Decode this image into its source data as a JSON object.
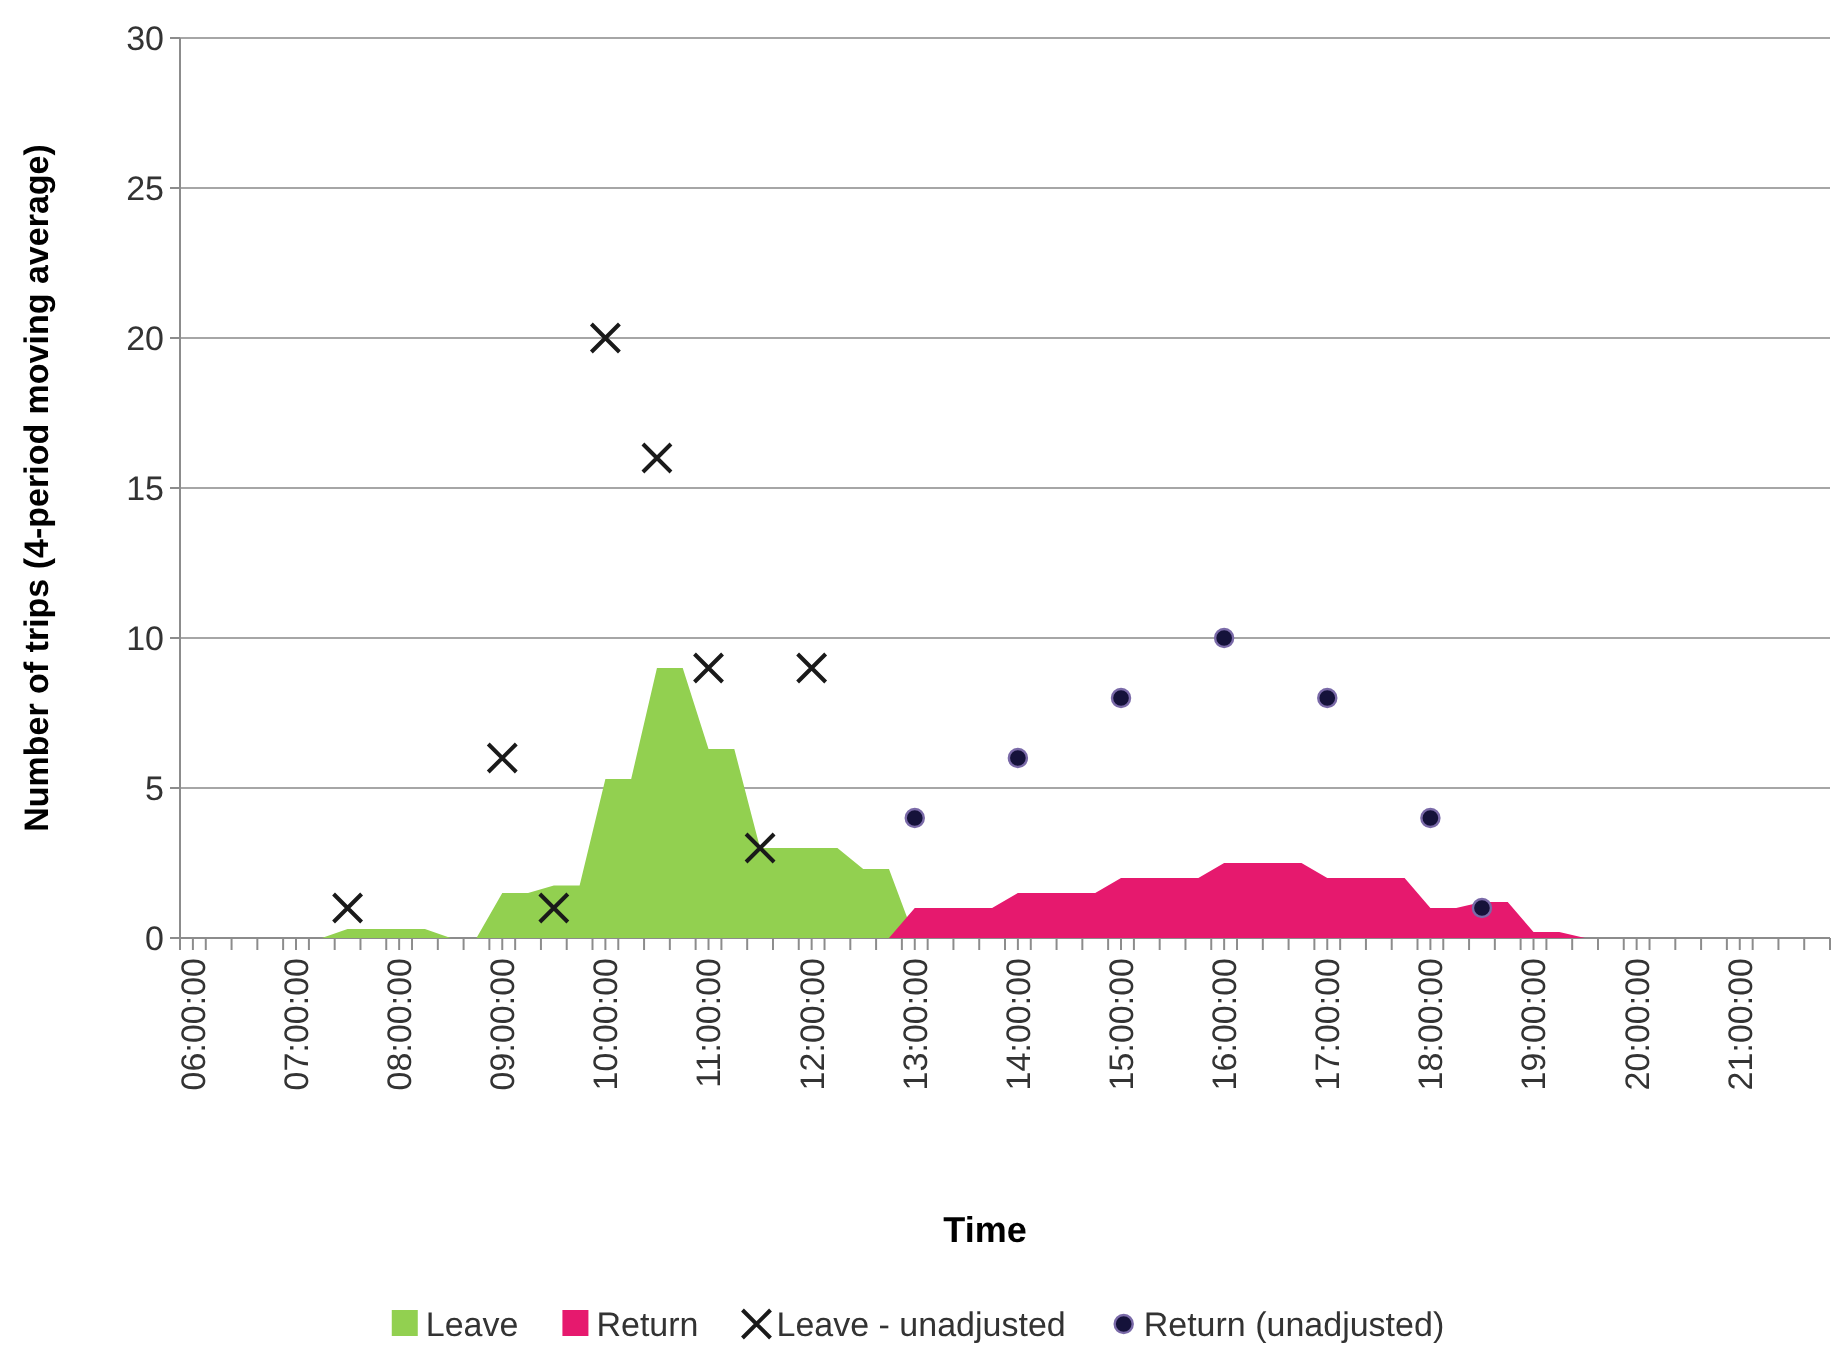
{
  "chart_data": {
    "type": "area",
    "xlabel": "Time",
    "ylabel": "Number of trips (4-period moving average)",
    "x": [
      6,
      6.25,
      6.5,
      6.75,
      7,
      7.25,
      7.5,
      7.75,
      8,
      8.25,
      8.5,
      8.75,
      9,
      9.25,
      9.5,
      9.75,
      10,
      10.25,
      10.5,
      10.75,
      11,
      11.25,
      11.5,
      11.75,
      12,
      12.25,
      12.5,
      12.75,
      13,
      13.25,
      13.5,
      13.75,
      14,
      14.25,
      14.5,
      14.75,
      15,
      15.25,
      15.5,
      15.75,
      16,
      16.25,
      16.5,
      16.75,
      17,
      17.25,
      17.5,
      17.75,
      18,
      18.25,
      18.5,
      18.75,
      19,
      19.25,
      19.5,
      19.75,
      20,
      20.25,
      20.5,
      20.75,
      21,
      21.25,
      21.5,
      21.75
    ],
    "series": [
      {
        "name": "Leave",
        "color": "#92d050",
        "values": [
          0,
          0,
          0,
          0,
          0,
          0,
          0.3,
          0.3,
          0.3,
          0.3,
          0,
          0,
          1.5,
          1.5,
          1.75,
          1.75,
          5.3,
          5.3,
          9,
          9,
          6.3,
          6.3,
          3,
          3,
          3,
          3,
          2.3,
          2.3,
          0,
          0,
          0,
          0,
          0,
          0,
          0,
          0,
          0,
          0,
          0,
          0,
          0,
          0,
          0,
          0,
          0,
          0,
          0,
          0,
          0,
          0,
          0,
          0,
          0,
          0,
          0,
          0,
          0,
          0,
          0,
          0,
          0,
          0,
          0,
          0
        ]
      },
      {
        "name": "Return",
        "color": "#e6196e",
        "values": [
          0,
          0,
          0,
          0,
          0,
          0,
          0,
          0,
          0,
          0,
          0,
          0,
          0,
          0,
          0,
          0,
          0,
          0,
          0,
          0,
          0,
          0,
          0,
          0,
          0,
          0,
          0,
          0,
          1,
          1,
          1,
          1,
          1.5,
          1.5,
          1.5,
          1.5,
          2,
          2,
          2,
          2,
          2.5,
          2.5,
          2.5,
          2.5,
          2,
          2,
          2,
          2,
          1,
          1,
          1.2,
          1.2,
          0.2,
          0.2,
          0,
          0,
          0,
          0,
          0,
          0,
          0,
          0,
          0,
          0
        ]
      },
      {
        "name": "Leave - unadjusted",
        "type": "scatter",
        "marker": "cross",
        "color": "#1a1a1a",
        "x": [
          7.5,
          9,
          9.5,
          10,
          10.5,
          11,
          11.5,
          12
        ],
        "values": [
          1,
          6,
          1,
          20,
          16,
          9,
          3,
          9
        ]
      },
      {
        "name": "Return (unadjusted)",
        "type": "scatter",
        "marker": "circle",
        "color": "#15123a",
        "x": [
          13,
          14,
          15,
          16,
          17,
          18,
          18.5
        ],
        "values": [
          4,
          6,
          8,
          10,
          8,
          4,
          1
        ]
      }
    ],
    "xlim": [
      5.875,
      21.875
    ],
    "xticks": [
      {
        "value": 6,
        "label": "06:00:00"
      },
      {
        "value": 7,
        "label": "07:00:00"
      },
      {
        "value": 8,
        "label": "08:00:00"
      },
      {
        "value": 9,
        "label": "09:00:00"
      },
      {
        "value": 10,
        "label": "10:00:00"
      },
      {
        "value": 11,
        "label": "11:00:00"
      },
      {
        "value": 12,
        "label": "12:00:00"
      },
      {
        "value": 13,
        "label": "13:00:00"
      },
      {
        "value": 14,
        "label": "14:00:00"
      },
      {
        "value": 15,
        "label": "15:00:00"
      },
      {
        "value": 16,
        "label": "16:00:00"
      },
      {
        "value": 17,
        "label": "17:00:00"
      },
      {
        "value": 18,
        "label": "18:00:00"
      },
      {
        "value": 19,
        "label": "19:00:00"
      },
      {
        "value": 20,
        "label": "20:00:00"
      },
      {
        "value": 21,
        "label": "21:00:00"
      },
      {
        "value": 5.875,
        "label": null
      },
      {
        "value": 6.125,
        "label": null
      },
      {
        "value": 6.375,
        "label": null
      },
      {
        "value": 6.625,
        "label": null
      },
      {
        "value": 6.875,
        "label": null
      },
      {
        "value": 7.125,
        "label": null
      },
      {
        "value": 7.375,
        "label": null
      },
      {
        "value": 7.625,
        "label": null
      },
      {
        "value": 7.875,
        "label": null
      },
      {
        "value": 8.125,
        "label": null
      },
      {
        "value": 8.375,
        "label": null
      },
      {
        "value": 8.625,
        "label": null
      },
      {
        "value": 8.875,
        "label": null
      },
      {
        "value": 9.125,
        "label": null
      },
      {
        "value": 9.375,
        "label": null
      },
      {
        "value": 9.625,
        "label": null
      },
      {
        "value": 9.875,
        "label": null
      },
      {
        "value": 10.125,
        "label": null
      },
      {
        "value": 10.375,
        "label": null
      },
      {
        "value": 10.625,
        "label": null
      },
      {
        "value": 10.875,
        "label": null
      },
      {
        "value": 11.125,
        "label": null
      },
      {
        "value": 11.375,
        "label": null
      },
      {
        "value": 11.625,
        "label": null
      },
      {
        "value": 11.875,
        "label": null
      },
      {
        "value": 12.125,
        "label": null
      },
      {
        "value": 12.375,
        "label": null
      },
      {
        "value": 12.625,
        "label": null
      },
      {
        "value": 12.875,
        "label": null
      },
      {
        "value": 13.125,
        "label": null
      },
      {
        "value": 13.375,
        "label": null
      },
      {
        "value": 13.625,
        "label": null
      },
      {
        "value": 13.875,
        "label": null
      },
      {
        "value": 14.125,
        "label": null
      },
      {
        "value": 14.375,
        "label": null
      },
      {
        "value": 14.625,
        "label": null
      },
      {
        "value": 14.875,
        "label": null
      },
      {
        "value": 15.125,
        "label": null
      },
      {
        "value": 15.375,
        "label": null
      },
      {
        "value": 15.625,
        "label": null
      },
      {
        "value": 15.875,
        "label": null
      },
      {
        "value": 16.125,
        "label": null
      },
      {
        "value": 16.375,
        "label": null
      },
      {
        "value": 16.625,
        "label": null
      },
      {
        "value": 16.875,
        "label": null
      },
      {
        "value": 17.125,
        "label": null
      },
      {
        "value": 17.375,
        "label": null
      },
      {
        "value": 17.625,
        "label": null
      },
      {
        "value": 17.875,
        "label": null
      },
      {
        "value": 18.125,
        "label": null
      },
      {
        "value": 18.375,
        "label": null
      },
      {
        "value": 18.625,
        "label": null
      },
      {
        "value": 18.875,
        "label": null
      },
      {
        "value": 19.125,
        "label": null
      },
      {
        "value": 19.375,
        "label": null
      },
      {
        "value": 19.625,
        "label": null
      },
      {
        "value": 19.875,
        "label": null
      },
      {
        "value": 20.125,
        "label": null
      },
      {
        "value": 20.375,
        "label": null
      },
      {
        "value": 20.625,
        "label": null
      },
      {
        "value": 20.875,
        "label": null
      },
      {
        "value": 21.125,
        "label": null
      },
      {
        "value": 21.375,
        "label": null
      },
      {
        "value": 21.625,
        "label": null
      },
      {
        "value": 21.875,
        "label": null
      }
    ],
    "ylim": [
      0,
      30
    ],
    "yticks": [
      0,
      5,
      10,
      15,
      20,
      25,
      30
    ],
    "grid": "y",
    "legend": "bottom"
  }
}
